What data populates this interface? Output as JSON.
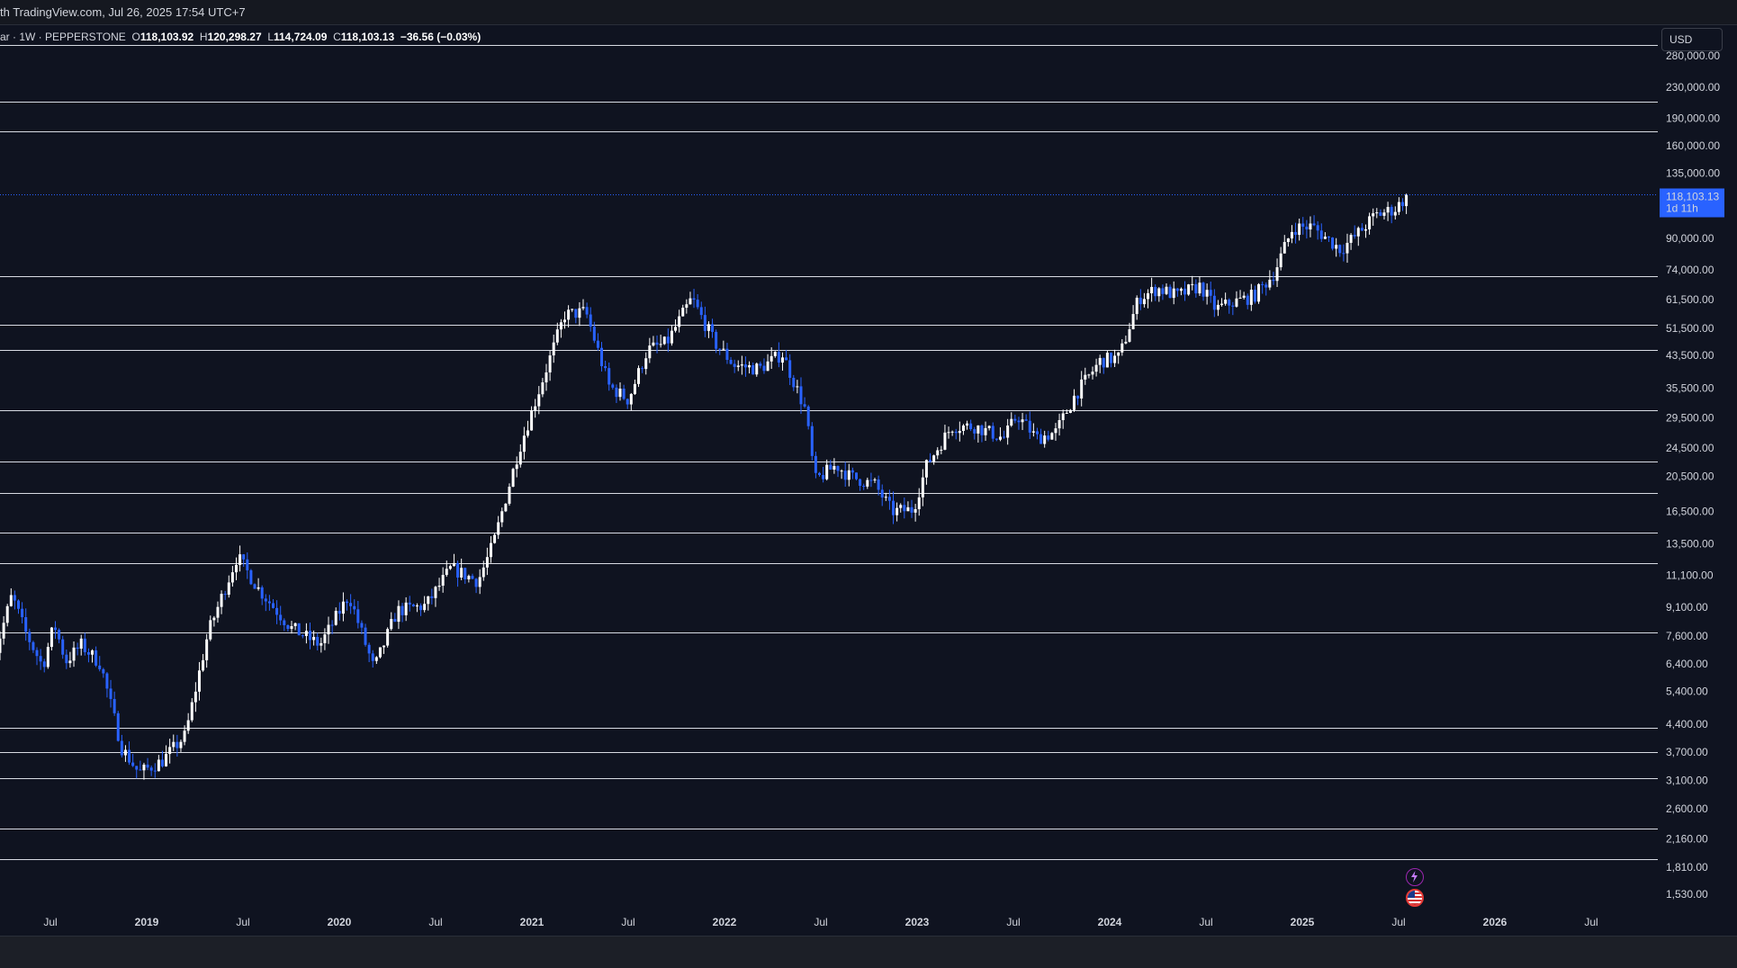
{
  "header": {
    "title_text": "th TradingView.com, Jul 26, 2025 17:54 UTC+7"
  },
  "legend": {
    "symbol": "ar · 1W · PEPPERSTONE",
    "open_label": "O",
    "open": "118,103.92",
    "high_label": "H",
    "high": "120,298.27",
    "low_label": "L",
    "low": "114,724.09",
    "close_label": "C",
    "close": "118,103.13",
    "change": "−36.56 (−0.03%)"
  },
  "currency_button": "USD",
  "price_tag": {
    "price": "118,103.13",
    "countdown": "1d 11h"
  },
  "colors": {
    "background": "#0f1320",
    "up_candle": "#ffffff",
    "down_candle": "#2962ff",
    "price_tag": "#2962ff",
    "grid_lines": "#d8dbe3"
  },
  "icons": [
    "lightning-icon",
    "us-flag-icon"
  ],
  "chart_data": {
    "type": "candlestick",
    "y_scale": "log",
    "ylim": [
      1400,
      300000
    ],
    "y_ticks": [
      {
        "v": 280000,
        "label": "280,000.00"
      },
      {
        "v": 230000,
        "label": "230,000.00"
      },
      {
        "v": 190000,
        "label": "190,000.00"
      },
      {
        "v": 160000,
        "label": "160,000.00"
      },
      {
        "v": 135000,
        "label": "135,000.00"
      },
      {
        "v": 90000,
        "label": "90,000.00"
      },
      {
        "v": 74000,
        "label": "74,000.00"
      },
      {
        "v": 61500,
        "label": "61,500.00"
      },
      {
        "v": 51500,
        "label": "51,500.00"
      },
      {
        "v": 43500,
        "label": "43,500.00"
      },
      {
        "v": 35500,
        "label": "35,500.00"
      },
      {
        "v": 29500,
        "label": "29,500.00"
      },
      {
        "v": 24500,
        "label": "24,500.00"
      },
      {
        "v": 20500,
        "label": "20,500.00"
      },
      {
        "v": 16500,
        "label": "16,500.00"
      },
      {
        "v": 13500,
        "label": "13,500.00"
      },
      {
        "v": 11100,
        "label": "11,100.00"
      },
      {
        "v": 9100,
        "label": "9,100.00"
      },
      {
        "v": 7600,
        "label": "7,600.00"
      },
      {
        "v": 6400,
        "label": "6,400.00"
      },
      {
        "v": 5400,
        "label": "5,400.00"
      },
      {
        "v": 4400,
        "label": "4,400.00"
      },
      {
        "v": 3700,
        "label": "3,700.00"
      },
      {
        "v": 3100,
        "label": "3,100.00"
      },
      {
        "v": 2600,
        "label": "2,600.00"
      },
      {
        "v": 2160,
        "label": "2,160.00"
      },
      {
        "v": 1810,
        "label": "1,810.00"
      },
      {
        "v": 1530,
        "label": "1,530.00"
      }
    ],
    "x_ticks": [
      {
        "t": 2018.5,
        "label": "Jul",
        "bold": false
      },
      {
        "t": 2019.0,
        "label": "2019",
        "bold": true
      },
      {
        "t": 2019.5,
        "label": "Jul",
        "bold": false
      },
      {
        "t": 2020.0,
        "label": "2020",
        "bold": true
      },
      {
        "t": 2020.5,
        "label": "Jul",
        "bold": false
      },
      {
        "t": 2021.0,
        "label": "2021",
        "bold": true
      },
      {
        "t": 2021.5,
        "label": "Jul",
        "bold": false
      },
      {
        "t": 2022.0,
        "label": "2022",
        "bold": true
      },
      {
        "t": 2022.5,
        "label": "Jul",
        "bold": false
      },
      {
        "t": 2023.0,
        "label": "2023",
        "bold": true
      },
      {
        "t": 2023.5,
        "label": "Jul",
        "bold": false
      },
      {
        "t": 2024.0,
        "label": "2024",
        "bold": true
      },
      {
        "t": 2024.5,
        "label": "Jul",
        "bold": false
      },
      {
        "t": 2025.0,
        "label": "2025",
        "bold": true
      },
      {
        "t": 2025.5,
        "label": "Jul",
        "bold": false
      },
      {
        "t": 2026.0,
        "label": "2026",
        "bold": true
      },
      {
        "t": 2026.5,
        "label": "Jul",
        "bold": false
      }
    ],
    "horizontal_levels": [
      300000,
      210000,
      175000,
      71000,
      52500,
      45000,
      31000,
      22500,
      18500,
      14500,
      12000,
      7800,
      4300,
      3700,
      3150,
      2300,
      1900
    ],
    "last_price": 118103.13,
    "price_path": [
      [
        2018.2,
        6500
      ],
      [
        2018.3,
        9800
      ],
      [
        2018.37,
        7800
      ],
      [
        2018.46,
        6300
      ],
      [
        2018.52,
        8200
      ],
      [
        2018.58,
        6500
      ],
      [
        2018.66,
        7200
      ],
      [
        2018.76,
        6400
      ],
      [
        2018.87,
        3800
      ],
      [
        2018.96,
        3250
      ],
      [
        2019.08,
        3500
      ],
      [
        2019.2,
        4100
      ],
      [
        2019.32,
        7800
      ],
      [
        2019.47,
        12500
      ],
      [
        2019.58,
        10200
      ],
      [
        2019.75,
        8000
      ],
      [
        2019.9,
        7200
      ],
      [
        2020.05,
        9800
      ],
      [
        2020.18,
        6200
      ],
      [
        2020.3,
        8900
      ],
      [
        2020.45,
        9200
      ],
      [
        2020.58,
        11600
      ],
      [
        2020.72,
        10700
      ],
      [
        2020.8,
        13500
      ],
      [
        2020.93,
        24000
      ],
      [
        2021.06,
        38000
      ],
      [
        2021.17,
        56000
      ],
      [
        2021.28,
        57000
      ],
      [
        2021.4,
        36000
      ],
      [
        2021.5,
        33000
      ],
      [
        2021.6,
        45000
      ],
      [
        2021.7,
        47000
      ],
      [
        2021.83,
        62000
      ],
      [
        2021.95,
        47000
      ],
      [
        2022.05,
        41000
      ],
      [
        2022.18,
        40000
      ],
      [
        2022.3,
        44000
      ],
      [
        2022.42,
        31000
      ],
      [
        2022.47,
        20000
      ],
      [
        2022.58,
        22000
      ],
      [
        2022.65,
        20500
      ],
      [
        2022.78,
        19500
      ],
      [
        2022.87,
        16500
      ],
      [
        2022.98,
        16700
      ],
      [
        2023.05,
        22000
      ],
      [
        2023.18,
        28000
      ],
      [
        2023.3,
        28000
      ],
      [
        2023.45,
        26000
      ],
      [
        2023.52,
        30000
      ],
      [
        2023.62,
        26000
      ],
      [
        2023.72,
        27000
      ],
      [
        2023.82,
        34000
      ],
      [
        2023.95,
        42000
      ],
      [
        2024.05,
        43000
      ],
      [
        2024.15,
        62000
      ],
      [
        2024.25,
        66000
      ],
      [
        2024.35,
        63000
      ],
      [
        2024.47,
        67000
      ],
      [
        2024.55,
        58000
      ],
      [
        2024.62,
        60000
      ],
      [
        2024.75,
        63000
      ],
      [
        2024.85,
        72000
      ],
      [
        2024.95,
        96000
      ],
      [
        2025.05,
        97000
      ],
      [
        2025.2,
        84000
      ],
      [
        2025.3,
        94000
      ],
      [
        2025.38,
        104000
      ],
      [
        2025.48,
        108000
      ],
      [
        2025.55,
        118103
      ]
    ]
  }
}
